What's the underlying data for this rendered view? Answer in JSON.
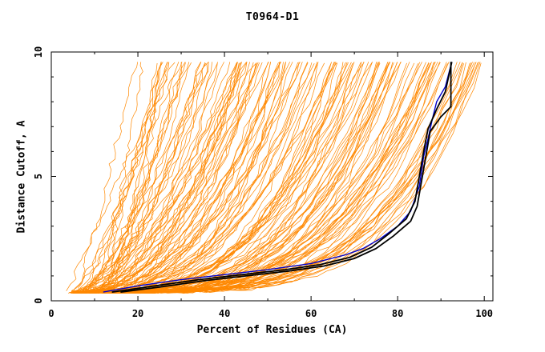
{
  "chart_data": {
    "type": "line",
    "title": "T0964-D1",
    "xlabel": "Percent of Residues (CA)",
    "ylabel": "Distance Cutoff, A",
    "xlim": [
      0,
      102
    ],
    "ylim": [
      0,
      10
    ],
    "x_ticks": [
      "0",
      "20",
      "40",
      "60",
      "80",
      "100"
    ],
    "y_ticks": [
      "0",
      "5",
      "10"
    ],
    "grid": false,
    "colors": {
      "background_models": "#ff8800",
      "blue_model": "#0000cc",
      "black_models": "#000000"
    },
    "series": [
      {
        "name": "",
        "color": "#0000cc",
        "x": [
          12,
          20,
          30,
          40,
          50,
          60,
          68,
          72,
          76,
          80,
          83,
          85,
          86,
          87,
          88,
          89,
          91,
          92.5
        ],
        "y": [
          0.35,
          0.6,
          0.85,
          1.05,
          1.25,
          1.5,
          1.85,
          2.1,
          2.5,
          3.0,
          3.6,
          4.6,
          5.8,
          6.5,
          7.3,
          8.0,
          8.6,
          9.6
        ]
      },
      {
        "name": "",
        "color": "#000000",
        "x": [
          16,
          25,
          35,
          45,
          55,
          63,
          70,
          75,
          79,
          83,
          84.5,
          85.5,
          86.5,
          87.5,
          90,
          92.3,
          92.3
        ],
        "y": [
          0.35,
          0.55,
          0.8,
          1.0,
          1.2,
          1.4,
          1.7,
          2.1,
          2.6,
          3.2,
          3.8,
          4.8,
          5.8,
          6.8,
          7.4,
          7.8,
          9.6
        ]
      },
      {
        "name": "",
        "color": "#000000",
        "x": [
          14,
          24,
          34,
          44,
          54,
          62,
          69,
          74,
          78,
          82,
          84,
          85,
          86,
          87,
          89,
          91,
          92.5
        ],
        "y": [
          0.35,
          0.6,
          0.85,
          1.05,
          1.25,
          1.45,
          1.75,
          2.15,
          2.7,
          3.3,
          4.0,
          5.0,
          6.0,
          6.9,
          7.7,
          8.4,
          9.6
        ]
      }
    ]
  }
}
